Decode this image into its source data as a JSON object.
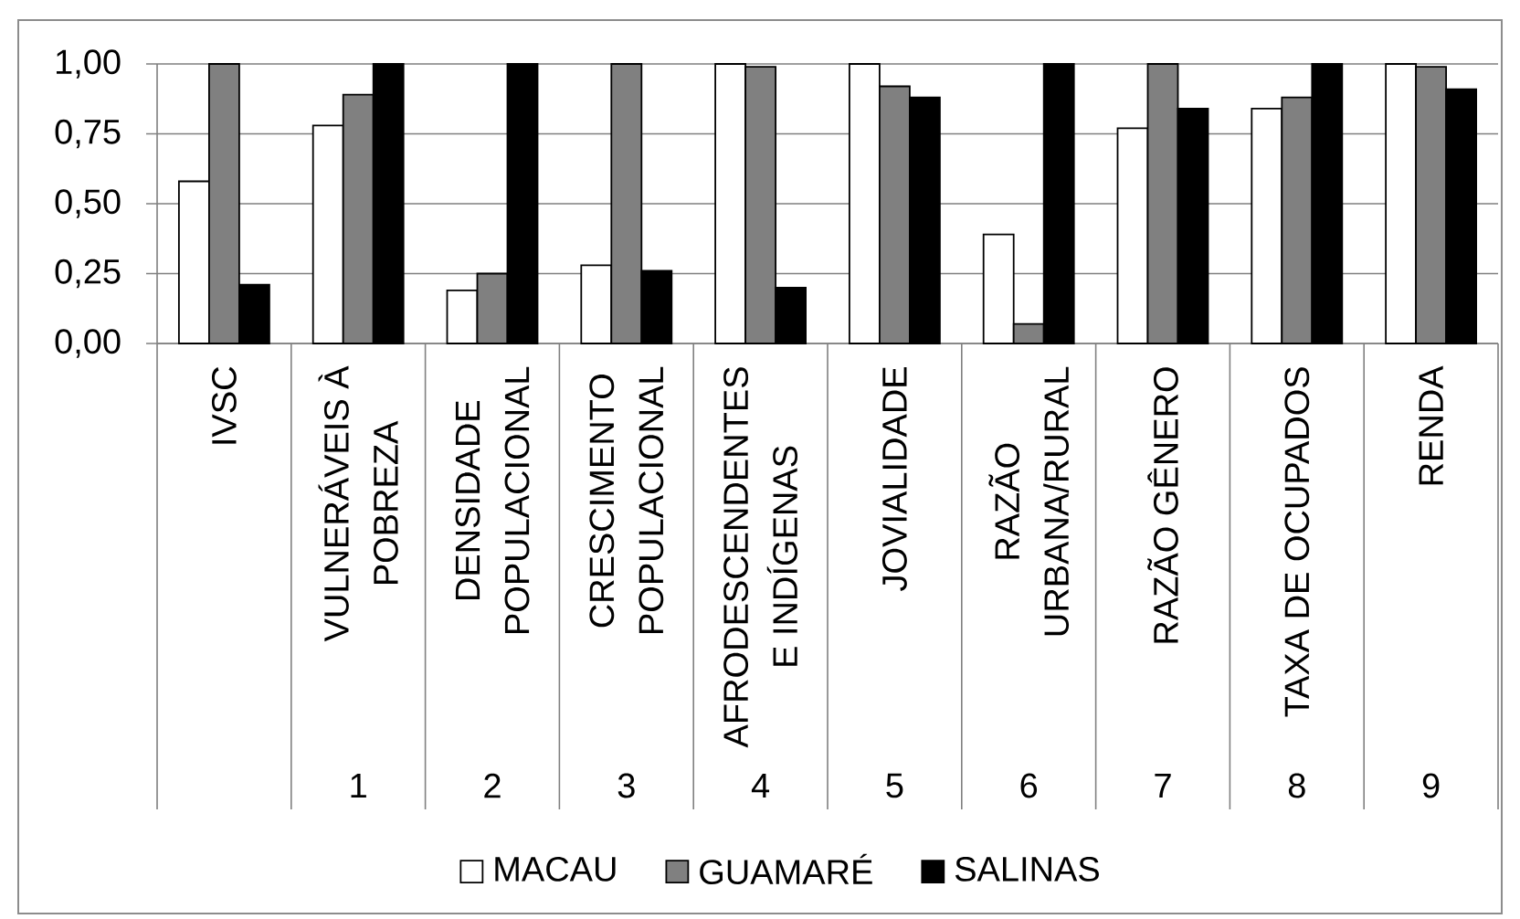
{
  "chart_data": {
    "type": "bar",
    "categories": [
      "IVSC",
      "VULNERÁVEIS À POBREZA",
      "DENSIDADE POPULACIONAL",
      "CRESCIMENTO POPULACIONAL",
      "AFRODESCENDENTES E INDÍGENAS",
      "JOVIALIDADE",
      "RAZÃO URBANA/RURAL",
      "RAZÃO GÊNERO",
      "TAXA DE OCUPADOS",
      "RENDA"
    ],
    "series": [
      {
        "name": "MACAU",
        "color": "#ffffff",
        "values": [
          0.58,
          0.78,
          0.19,
          0.28,
          1.0,
          1.0,
          0.39,
          0.77,
          0.84,
          1.0
        ]
      },
      {
        "name": "GUAMARÉ",
        "color": "#808080",
        "values": [
          1.0,
          0.89,
          0.25,
          1.0,
          0.99,
          0.92,
          0.07,
          1.0,
          0.88,
          0.99
        ]
      },
      {
        "name": "SALINAS",
        "color": "#000000",
        "values": [
          0.21,
          1.0,
          1.0,
          0.26,
          0.2,
          0.88,
          1.0,
          0.84,
          1.0,
          0.91
        ]
      }
    ],
    "ylim": [
      0,
      1
    ],
    "yticks": [
      {
        "value": 0,
        "label": "0,00"
      },
      {
        "value": 0.25,
        "label": "0,25"
      },
      {
        "value": 0.5,
        "label": "0,50"
      },
      {
        "value": 0.75,
        "label": "0,75"
      },
      {
        "value": 1,
        "label": "1,00"
      }
    ],
    "annotations": [
      "1",
      "2",
      "3",
      "4",
      "5",
      "6",
      "7",
      "8",
      "9"
    ],
    "grid": "y",
    "legend": "bottom"
  }
}
